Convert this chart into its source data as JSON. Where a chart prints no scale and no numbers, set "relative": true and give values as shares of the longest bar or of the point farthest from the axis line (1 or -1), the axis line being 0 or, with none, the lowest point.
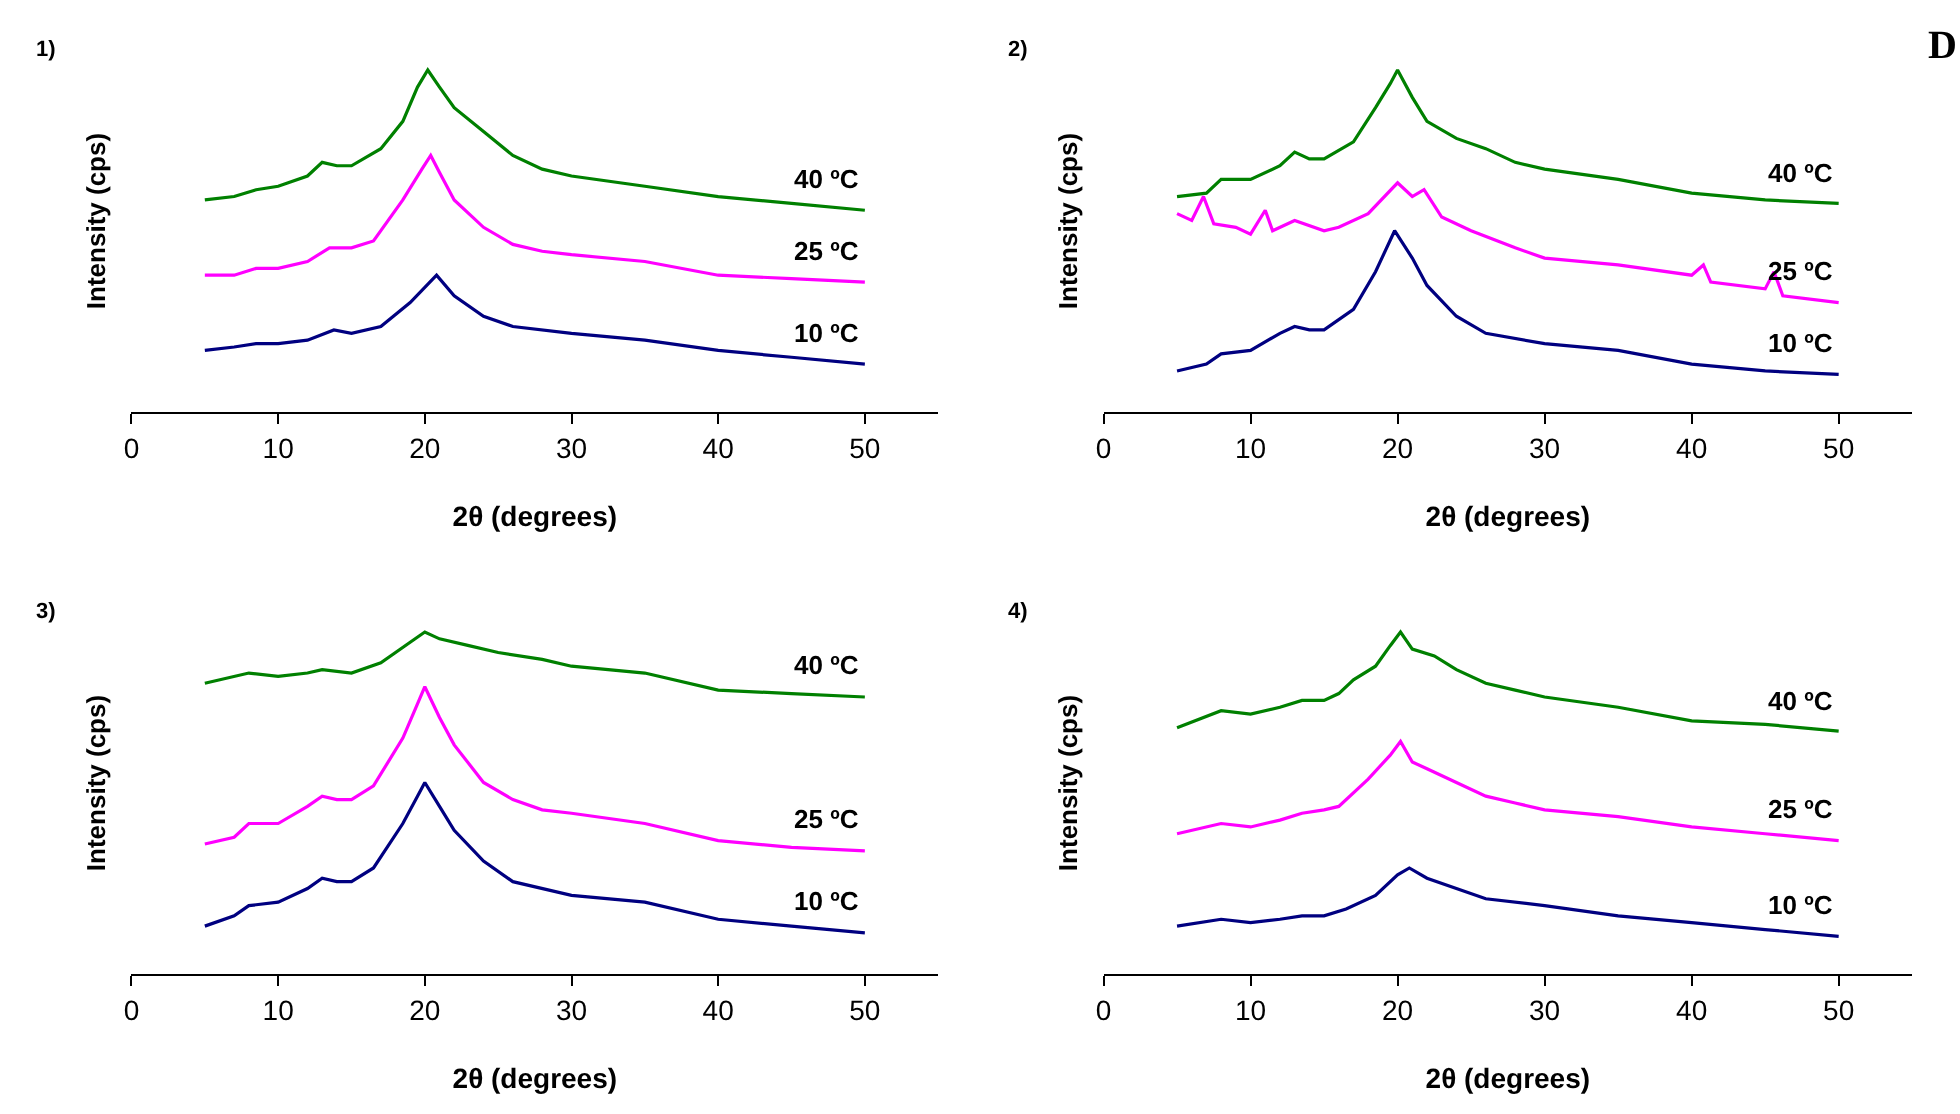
{
  "chart_data": [
    {
      "type": "line",
      "title": "1)",
      "xlabel": "2θ (degrees)",
      "ylabel": "Intensity (cps)",
      "relative": true,
      "xlim": [
        0,
        55
      ],
      "xticks": [
        0,
        10,
        20,
        30,
        40,
        50
      ],
      "tick_labels": "x",
      "grid": false,
      "legend": false,
      "marker": "none",
      "line_style": "solid",
      "series": [
        {
          "name": "40 ºC",
          "color": "#008000",
          "x": [
            5,
            7,
            8.5,
            10,
            12,
            13,
            14,
            15,
            17,
            18.5,
            19.5,
            20.2,
            21,
            22,
            24,
            26,
            28,
            30,
            35,
            40,
            45,
            50
          ],
          "values": [
            0.62,
            0.63,
            0.65,
            0.66,
            0.69,
            0.73,
            0.72,
            0.72,
            0.77,
            0.85,
            0.95,
            1,
            0.95,
            0.89,
            0.82,
            0.75,
            0.71,
            0.69,
            0.66,
            0.63,
            0.61,
            0.59
          ]
        },
        {
          "name": "25 ºC",
          "color": "#ff00ff",
          "x": [
            5,
            7,
            8.5,
            10,
            12,
            13.5,
            15,
            16.5,
            18.5,
            19.8,
            20.4,
            21,
            22,
            24,
            26,
            28,
            30,
            35,
            40,
            45,
            50
          ],
          "values": [
            0.4,
            0.4,
            0.42,
            0.42,
            0.44,
            0.48,
            0.48,
            0.5,
            0.62,
            0.71,
            0.75,
            0.7,
            0.62,
            0.54,
            0.49,
            0.47,
            0.46,
            0.44,
            0.4,
            0.39,
            0.38
          ]
        },
        {
          "name": "10 ºC",
          "color": "#000080",
          "x": [
            5,
            7,
            8.5,
            10,
            12,
            13.8,
            15,
            17,
            19,
            20.8,
            22,
            24,
            26,
            30,
            35,
            40,
            45,
            50
          ],
          "values": [
            0.18,
            0.19,
            0.2,
            0.2,
            0.21,
            0.24,
            0.23,
            0.25,
            0.32,
            0.4,
            0.34,
            0.28,
            0.25,
            0.23,
            0.21,
            0.18,
            0.16,
            0.14
          ]
        }
      ]
    },
    {
      "type": "line",
      "title": "2)",
      "xlabel": "2θ (degrees)",
      "ylabel": "Intensity (cps)",
      "relative": true,
      "xlim": [
        0,
        55
      ],
      "xticks": [
        0,
        10,
        20,
        30,
        40,
        50
      ],
      "tick_labels": "x",
      "grid": false,
      "legend": false,
      "marker": "none",
      "line_style": "solid",
      "annotations": [
        "D"
      ],
      "series": [
        {
          "name": "40 ºC",
          "color": "#008000",
          "x": [
            5,
            7,
            8,
            10,
            12,
            13,
            14,
            15,
            17,
            18.5,
            19.5,
            20,
            21,
            22,
            24,
            26,
            28,
            30,
            35,
            40,
            45,
            50
          ],
          "values": [
            0.63,
            0.64,
            0.68,
            0.68,
            0.72,
            0.76,
            0.74,
            0.74,
            0.79,
            0.89,
            0.96,
            1,
            0.92,
            0.85,
            0.8,
            0.77,
            0.73,
            0.71,
            0.68,
            0.64,
            0.62,
            0.61
          ]
        },
        {
          "name": "25 ºC",
          "color": "#ff00ff",
          "x": [
            5,
            6,
            6.8,
            7.5,
            9,
            10,
            11,
            11.5,
            13,
            15,
            16,
            18,
            20,
            21,
            21.8,
            23,
            25,
            28,
            30,
            35,
            40,
            40.8,
            41.3,
            45,
            45.6,
            46.2,
            50
          ],
          "values": [
            0.58,
            0.56,
            0.63,
            0.55,
            0.54,
            0.52,
            0.59,
            0.53,
            0.56,
            0.53,
            0.54,
            0.58,
            0.67,
            0.63,
            0.65,
            0.57,
            0.53,
            0.48,
            0.45,
            0.43,
            0.4,
            0.43,
            0.38,
            0.36,
            0.41,
            0.34,
            0.32
          ]
        },
        {
          "name": "10 ºC",
          "color": "#000080",
          "x": [
            5,
            7,
            8,
            10,
            12,
            13,
            14,
            15,
            17,
            18.5,
            19.8,
            21,
            22,
            24,
            26,
            30,
            35,
            40,
            45,
            50
          ],
          "values": [
            0.12,
            0.14,
            0.17,
            0.18,
            0.23,
            0.25,
            0.24,
            0.24,
            0.3,
            0.41,
            0.53,
            0.45,
            0.37,
            0.28,
            0.23,
            0.2,
            0.18,
            0.14,
            0.12,
            0.11
          ]
        }
      ]
    },
    {
      "type": "line",
      "title": "3)",
      "xlabel": "2θ (degrees)",
      "ylabel": "Intensity (cps)",
      "relative": true,
      "xlim": [
        0,
        55
      ],
      "xticks": [
        0,
        10,
        20,
        30,
        40,
        50
      ],
      "tick_labels": "x",
      "grid": false,
      "legend": false,
      "marker": "none",
      "line_style": "solid",
      "series": [
        {
          "name": "40 ºC",
          "color": "#008000",
          "x": [
            5,
            8,
            10,
            12,
            13,
            15,
            17,
            19,
            20,
            21,
            23,
            25,
            28,
            30,
            35,
            40,
            45,
            50
          ],
          "values": [
            0.85,
            0.88,
            0.87,
            0.88,
            0.89,
            0.88,
            0.91,
            0.97,
            1,
            0.98,
            0.96,
            0.94,
            0.92,
            0.9,
            0.88,
            0.83,
            0.82,
            0.81
          ]
        },
        {
          "name": "25 ºC",
          "color": "#ff00ff",
          "x": [
            5,
            7,
            8,
            10,
            12,
            13,
            14,
            15,
            16.5,
            18.5,
            19.5,
            20,
            21,
            22,
            24,
            26,
            28,
            30,
            35,
            40,
            45,
            50
          ],
          "values": [
            0.38,
            0.4,
            0.44,
            0.44,
            0.49,
            0.52,
            0.51,
            0.51,
            0.55,
            0.69,
            0.79,
            0.84,
            0.75,
            0.67,
            0.56,
            0.51,
            0.48,
            0.47,
            0.44,
            0.39,
            0.37,
            0.36
          ]
        },
        {
          "name": "10 ºC",
          "color": "#000080",
          "x": [
            5,
            7,
            8,
            10,
            12,
            13,
            14,
            15,
            16.5,
            18.5,
            19.5,
            20,
            21,
            22,
            24,
            26,
            30,
            35,
            40,
            45,
            50
          ],
          "values": [
            0.14,
            0.17,
            0.2,
            0.21,
            0.25,
            0.28,
            0.27,
            0.27,
            0.31,
            0.44,
            0.52,
            0.56,
            0.49,
            0.42,
            0.33,
            0.27,
            0.23,
            0.21,
            0.16,
            0.14,
            0.12
          ]
        }
      ]
    },
    {
      "type": "line",
      "title": "4)",
      "xlabel": "2θ (degrees)",
      "ylabel": "Intensity (cps)",
      "relative": true,
      "xlim": [
        0,
        55
      ],
      "xticks": [
        0,
        10,
        20,
        30,
        40,
        50
      ],
      "tick_labels": "x",
      "grid": false,
      "legend": false,
      "marker": "none",
      "line_style": "solid",
      "series": [
        {
          "name": "40 ºC",
          "color": "#008000",
          "x": [
            5,
            8,
            10,
            12,
            13.5,
            15,
            16,
            17,
            18.5,
            19.5,
            20.2,
            21,
            22.5,
            24,
            26,
            28,
            30,
            35,
            40,
            45,
            50
          ],
          "values": [
            0.72,
            0.77,
            0.76,
            0.78,
            0.8,
            0.8,
            0.82,
            0.86,
            0.9,
            0.96,
            1,
            0.95,
            0.93,
            0.89,
            0.85,
            0.83,
            0.81,
            0.78,
            0.74,
            0.73,
            0.71
          ]
        },
        {
          "name": "25 ºC",
          "color": "#ff00ff",
          "x": [
            5,
            8,
            10,
            12,
            13.5,
            15,
            16,
            18,
            19.5,
            20.2,
            21,
            22,
            24,
            26,
            28,
            30,
            35,
            40,
            45,
            50
          ],
          "values": [
            0.41,
            0.44,
            0.43,
            0.45,
            0.47,
            0.48,
            0.49,
            0.57,
            0.64,
            0.68,
            0.62,
            0.6,
            0.56,
            0.52,
            0.5,
            0.48,
            0.46,
            0.43,
            0.41,
            0.39
          ]
        },
        {
          "name": "10 ºC",
          "color": "#000080",
          "x": [
            5,
            8,
            10,
            12,
            13.5,
            15,
            16.5,
            18.5,
            20,
            20.8,
            22,
            24,
            26,
            30,
            35,
            40,
            45,
            50
          ],
          "values": [
            0.14,
            0.16,
            0.15,
            0.16,
            0.17,
            0.17,
            0.19,
            0.23,
            0.29,
            0.31,
            0.28,
            0.25,
            0.22,
            0.2,
            0.17,
            0.15,
            0.13,
            0.11
          ]
        }
      ]
    }
  ]
}
